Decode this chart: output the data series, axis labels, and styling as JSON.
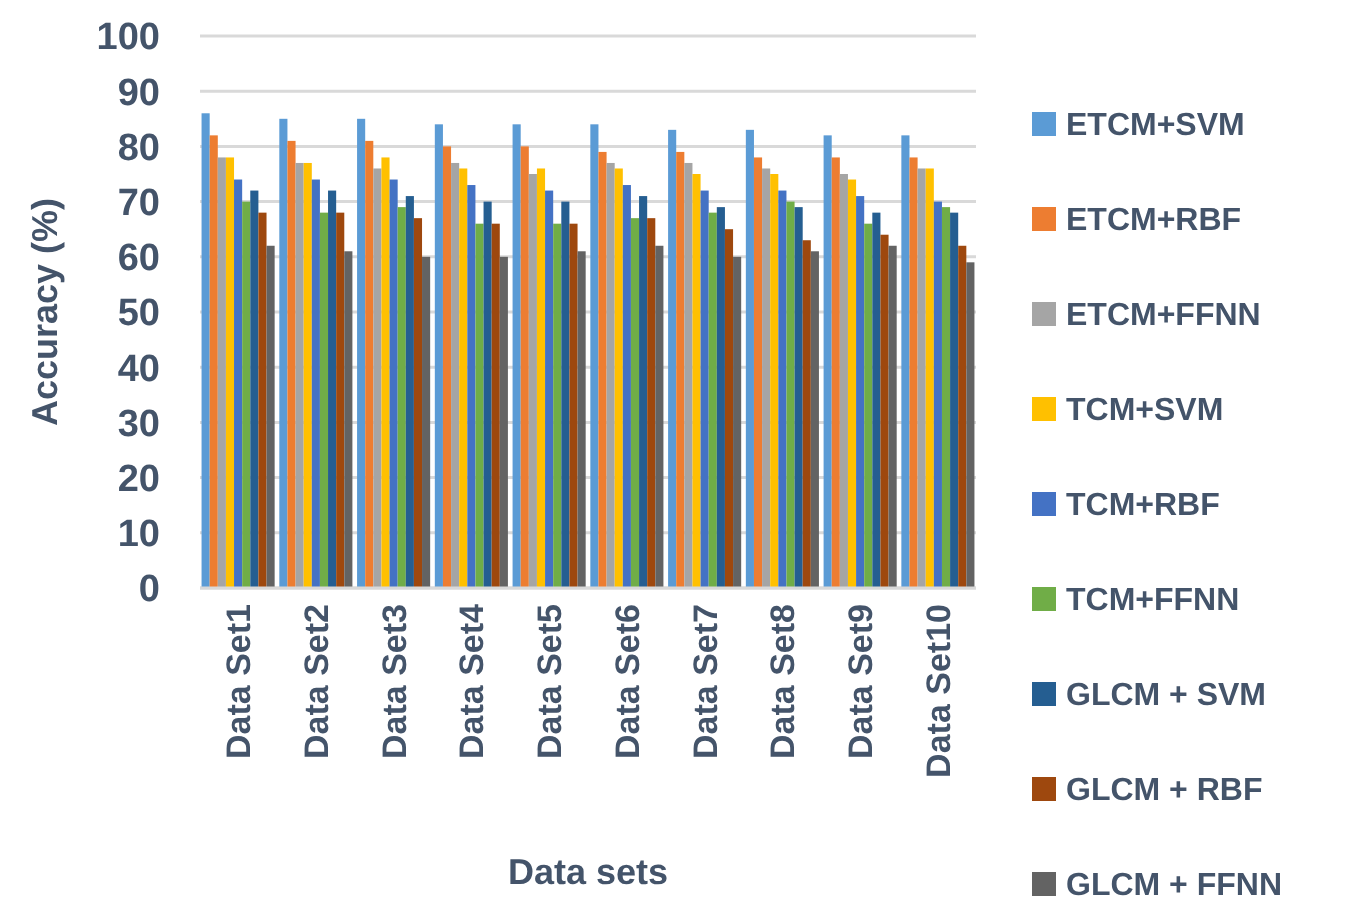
{
  "chart_data": {
    "type": "bar",
    "xlabel": "Data sets",
    "ylabel": "Accuracy (%)",
    "categories": [
      "Data Set1",
      "Data Set2",
      "Data Set3",
      "Data Set4",
      "Data Set5",
      "Data Set6",
      "Data Set7",
      "Data Set8",
      "Data Set9",
      "Data Set10"
    ],
    "series": [
      {
        "name": "ETCM+SVM",
        "color": "#5b9bd5",
        "values": [
          86,
          85,
          85,
          84,
          84,
          84,
          83,
          83,
          82,
          82
        ]
      },
      {
        "name": "ETCM+RBF",
        "color": "#ed7d31",
        "values": [
          82,
          81,
          81,
          80,
          80,
          79,
          79,
          78,
          78,
          78
        ]
      },
      {
        "name": "ETCM+FFNN",
        "color": "#a5a5a5",
        "values": [
          78,
          77,
          76,
          77,
          75,
          77,
          77,
          76,
          75,
          76
        ]
      },
      {
        "name": "TCM+SVM",
        "color": "#ffc000",
        "values": [
          78,
          77,
          78,
          76,
          76,
          76,
          75,
          75,
          74,
          76
        ]
      },
      {
        "name": "TCM+RBF",
        "color": "#4472c4",
        "values": [
          74,
          74,
          74,
          73,
          72,
          73,
          72,
          72,
          71,
          70
        ]
      },
      {
        "name": "TCM+FFNN",
        "color": "#70ad47",
        "values": [
          70,
          68,
          69,
          66,
          66,
          67,
          68,
          70,
          66,
          69
        ]
      },
      {
        "name": "GLCM + SVM",
        "color": "#255e91",
        "values": [
          72,
          72,
          71,
          70,
          70,
          71,
          69,
          69,
          68,
          68
        ]
      },
      {
        "name": "GLCM + RBF",
        "color": "#9e480e",
        "values": [
          68,
          68,
          67,
          66,
          66,
          67,
          65,
          63,
          64,
          62
        ]
      },
      {
        "name": "GLCM + FFNN",
        "color": "#636363",
        "values": [
          62,
          61,
          60,
          60,
          61,
          62,
          60,
          61,
          62,
          59
        ]
      }
    ],
    "ylim": [
      0,
      100
    ],
    "yticks": [
      0,
      10,
      20,
      30,
      40,
      50,
      60,
      70,
      80,
      90,
      100
    ],
    "grid": "y",
    "legend": "right"
  }
}
